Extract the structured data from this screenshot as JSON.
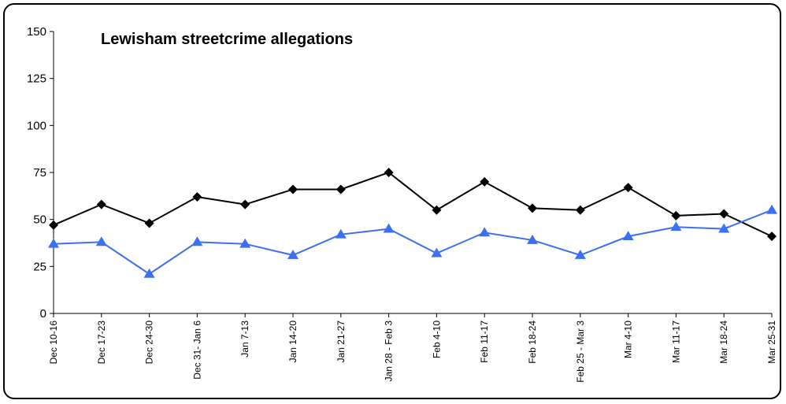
{
  "chart_data": {
    "type": "line",
    "title": "Lewisham streetcrime allegations",
    "xlabel": "",
    "ylabel": "",
    "ylim": [
      0,
      150
    ],
    "yticks": [
      0,
      25,
      50,
      75,
      100,
      125,
      150
    ],
    "grid": false,
    "legend": "none",
    "categories": [
      "Dec 10-16",
      "Dec 17-23",
      "Dec 24-30",
      "Dec 31- Jan 6",
      "Jan 7-13",
      "Jan 14-20",
      "Jan 21-27",
      "Jan 28 - Feb 3",
      "Feb 4-10",
      "Feb 11-17",
      "Feb 18-24",
      "Feb 25 - Mar 3",
      "Mar 4-10",
      "Mar 11-17",
      "Mar 18-24",
      "Mar 25-31"
    ],
    "series": [
      {
        "color": "#000000",
        "marker": "diamond",
        "values": [
          47,
          58,
          48,
          62,
          58,
          66,
          66,
          75,
          55,
          70,
          56,
          55,
          67,
          52,
          53,
          41
        ]
      },
      {
        "color": "#3d6ff2",
        "marker": "triangle",
        "values": [
          37,
          38,
          21,
          38,
          37,
          31,
          42,
          45,
          32,
          43,
          39,
          31,
          41,
          46,
          45,
          55
        ]
      }
    ]
  }
}
